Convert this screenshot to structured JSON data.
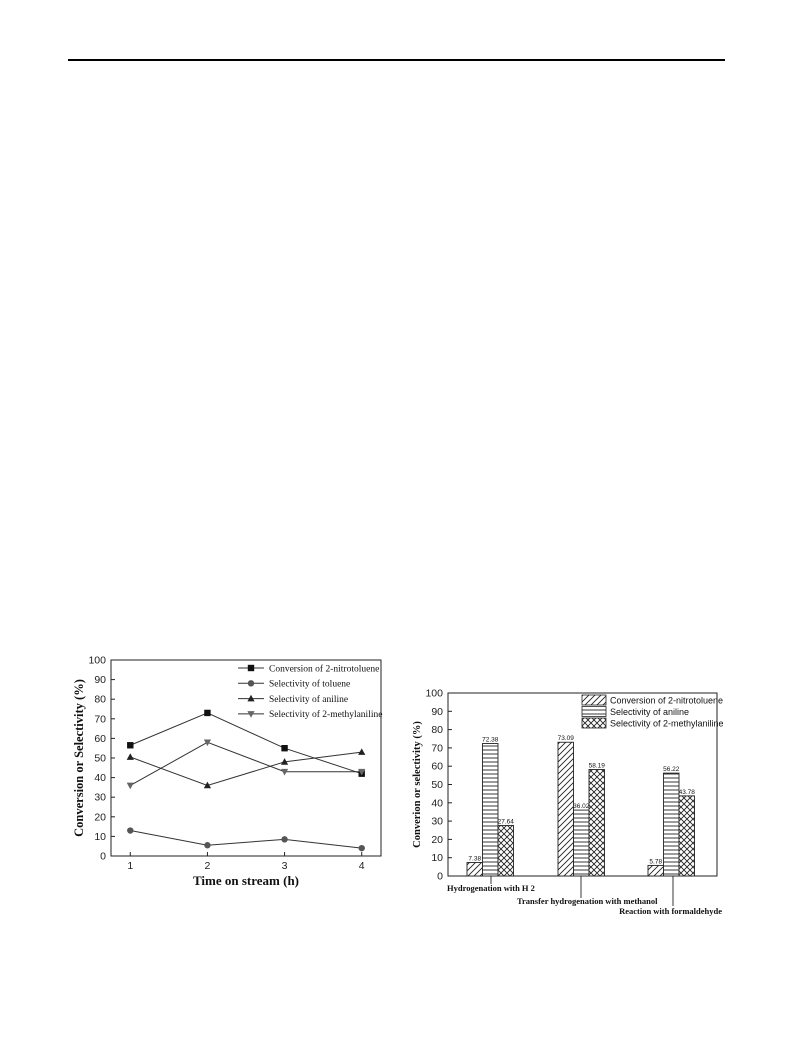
{
  "chart_data": [
    {
      "type": "line",
      "title": "",
      "xlabel": "Time on stream (h)",
      "ylabel": "Conversion or Selectivity (%)",
      "x": [
        1,
        2,
        3,
        4
      ],
      "xlim": [
        0.75,
        4.25
      ],
      "ylim": [
        0,
        100
      ],
      "yticks": [
        0,
        10,
        20,
        30,
        40,
        50,
        60,
        70,
        80,
        90,
        100
      ],
      "xticks": [
        1,
        2,
        3,
        4
      ],
      "legend_position": "top-right",
      "series": [
        {
          "name": "Conversion of 2-nitrotoluene",
          "marker": "square",
          "values": [
            56.5,
            73,
            55,
            42
          ]
        },
        {
          "name": "Selectivity of toluene",
          "marker": "circle",
          "values": [
            13,
            5.5,
            8.5,
            4
          ]
        },
        {
          "name": "Selectivity of aniline",
          "marker": "triangle-up",
          "values": [
            50.5,
            36,
            48,
            53
          ]
        },
        {
          "name": "Selectivity of 2-methylaniline",
          "marker": "triangle-down",
          "values": [
            36,
            58,
            43,
            43
          ]
        }
      ]
    },
    {
      "type": "bar",
      "title": "",
      "xlabel": "",
      "ylabel": "Converion or selectivity (%)",
      "ylim": [
        0,
        100
      ],
      "yticks": [
        0,
        10,
        20,
        30,
        40,
        50,
        60,
        70,
        80,
        90,
        100
      ],
      "legend_position": "top-right",
      "categories": [
        "Hydrogenation with H 2",
        "Transfer hydrogenation with methanol",
        "Reaction with formaldehyde"
      ],
      "series": [
        {
          "name": "Conversion of 2-nitrotoluene",
          "pattern": "diagonal",
          "values": [
            7.38,
            73.09,
            5.78
          ],
          "labels": [
            "7.38",
            "73.09",
            "5.78"
          ]
        },
        {
          "name": "Selectivity of aniline",
          "pattern": "horizontal",
          "values": [
            72.38,
            36.02,
            56.22
          ],
          "labels": [
            "72.38",
            "36.02",
            "56.22"
          ]
        },
        {
          "name": "Selectivity of 2-methylaniline",
          "pattern": "crosshatch",
          "values": [
            27.64,
            58.19,
            43.78
          ],
          "labels": [
            "27.64",
            "58.19",
            "43.78"
          ]
        }
      ]
    }
  ]
}
